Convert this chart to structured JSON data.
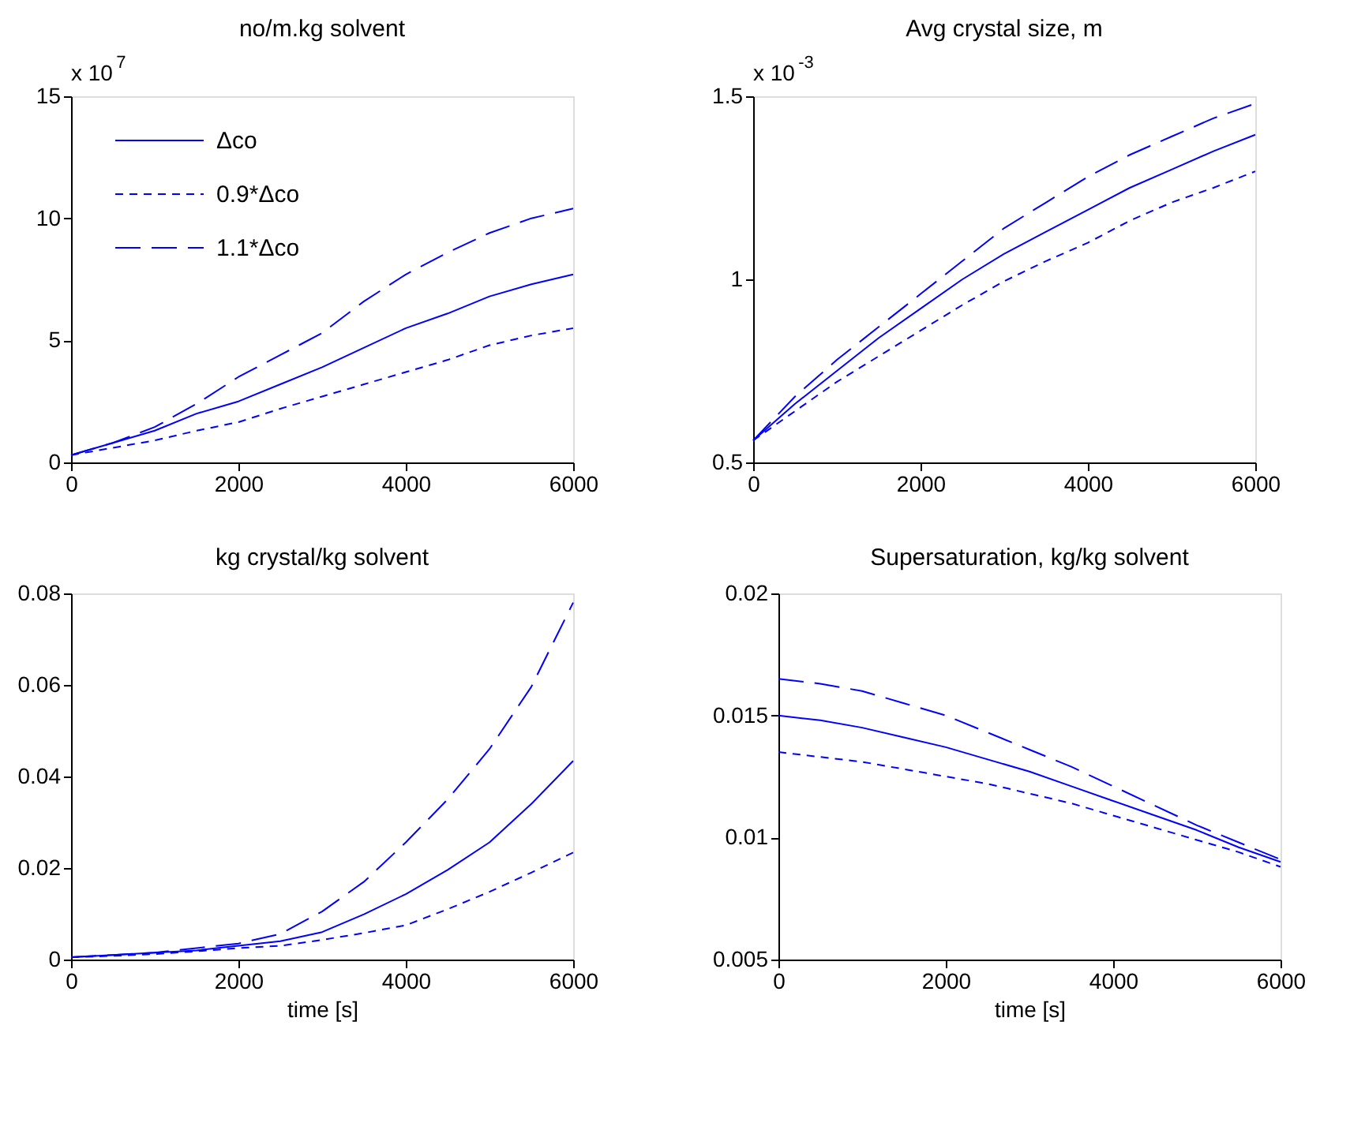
{
  "chart_data": [
    {
      "type": "line",
      "title": "no/m.kg solvent",
      "annotations": [
        "x 10$^{7}$"
      ],
      "legend": "top left",
      "xlim": [
        0,
        6000
      ],
      "xticks": [
        0,
        2000,
        4000,
        6000
      ],
      "ylim": [
        0,
        15
      ],
      "yticks": [
        0,
        5,
        10,
        15
      ],
      "x": [
        0,
        500,
        1000,
        1500,
        2000,
        2500,
        3000,
        3500,
        4000,
        4500,
        5000,
        5500,
        6000
      ],
      "series": [
        {
          "name": "Δco",
          "color": "#0000ff",
          "line_style": "solid",
          "values": [
            0.3,
            0.8,
            1.3,
            2.0,
            2.5,
            3.2,
            3.9,
            4.7,
            5.5,
            6.1,
            6.8,
            7.3,
            7.7
          ]
        },
        {
          "name": "0.9*Δco",
          "color": "#0000ff",
          "line_style": "dashed",
          "values": [
            0.3,
            0.6,
            0.9,
            1.3,
            1.65,
            2.2,
            2.7,
            3.2,
            3.7,
            4.2,
            4.8,
            5.2,
            5.5
          ]
        },
        {
          "name": "1.1*Δco",
          "color": "#0000ff",
          "line_style": "dashed",
          "values": [
            0.3,
            0.8,
            1.45,
            2.4,
            3.5,
            4.4,
            5.3,
            6.6,
            7.7,
            8.6,
            9.4,
            10.0,
            10.4
          ]
        }
      ]
    },
    {
      "type": "line",
      "title": "Avg crystal size, m",
      "annotations": [
        "x 10$^{-3}$"
      ],
      "xlim": [
        0,
        6000
      ],
      "xticks": [
        0,
        2000,
        4000,
        6000
      ],
      "ylim": [
        0.5,
        1.5
      ],
      "yticks": [
        0.5,
        1,
        1.5
      ],
      "x": [
        0,
        500,
        1000,
        1500,
        2000,
        2500,
        3000,
        3500,
        4000,
        4500,
        5000,
        5500,
        6000
      ],
      "series": [
        {
          "color": "#0000ff",
          "line_style": "solid",
          "values": [
            0.56,
            0.66,
            0.75,
            0.84,
            0.92,
            1.0,
            1.07,
            1.13,
            1.19,
            1.25,
            1.3,
            1.35,
            1.395
          ]
        },
        {
          "color": "#0000ff",
          "line_style": "dashed",
          "values": [
            0.56,
            0.64,
            0.72,
            0.79,
            0.86,
            0.93,
            0.995,
            1.05,
            1.1,
            1.16,
            1.21,
            1.25,
            1.295
          ]
        },
        {
          "color": "#0000ff",
          "line_style": "dashed",
          "values": [
            0.56,
            0.68,
            0.78,
            0.87,
            0.96,
            1.05,
            1.14,
            1.21,
            1.28,
            1.34,
            1.39,
            1.44,
            1.48
          ]
        }
      ]
    },
    {
      "type": "line",
      "title": "kg crystal/kg solvent",
      "xlabel": "time [s]",
      "xlim": [
        0,
        6000
      ],
      "xticks": [
        0,
        2000,
        4000,
        6000
      ],
      "ylim": [
        0,
        0.08
      ],
      "yticks": [
        0,
        0.02,
        0.04,
        0.06,
        0.08
      ],
      "x": [
        0,
        500,
        1000,
        1500,
        2000,
        2500,
        3000,
        3500,
        4000,
        4500,
        5000,
        5500,
        6000
      ],
      "series": [
        {
          "color": "#0000ff",
          "line_style": "solid",
          "values": [
            0.0005,
            0.001,
            0.0015,
            0.002,
            0.003,
            0.004,
            0.006,
            0.0099,
            0.0143,
            0.0196,
            0.0256,
            0.034,
            0.0434
          ]
        },
        {
          "color": "#0000ff",
          "line_style": "dashed",
          "values": [
            0.0005,
            0.0008,
            0.0012,
            0.0018,
            0.0025,
            0.003,
            0.0043,
            0.0058,
            0.0075,
            0.011,
            0.0148,
            0.019,
            0.0234
          ]
        },
        {
          "color": "#0000ff",
          "line_style": "dashed",
          "values": [
            0.0005,
            0.001,
            0.0015,
            0.0025,
            0.0035,
            0.0056,
            0.0105,
            0.017,
            0.0256,
            0.035,
            0.046,
            0.0596,
            0.078
          ]
        }
      ]
    },
    {
      "type": "line",
      "title": "Supersaturation, kg/kg solvent",
      "xlabel": "time [s]",
      "xlim": [
        0,
        6000
      ],
      "xticks": [
        0,
        2000,
        4000,
        6000
      ],
      "ylim": [
        0.005,
        0.02
      ],
      "yticks": [
        0.005,
        0.01,
        0.015,
        0.02
      ],
      "x": [
        0,
        500,
        1000,
        1500,
        2000,
        2500,
        3000,
        3500,
        4000,
        4500,
        5000,
        5500,
        6000
      ],
      "series": [
        {
          "color": "#0000ff",
          "line_style": "solid",
          "values": [
            0.015,
            0.0148,
            0.0145,
            0.0141,
            0.0137,
            0.0132,
            0.0127,
            0.0121,
            0.0115,
            0.0109,
            0.0103,
            0.0096,
            0.009
          ]
        },
        {
          "color": "#0000ff",
          "line_style": "dashed",
          "values": [
            0.0135,
            0.0133,
            0.0131,
            0.0128,
            0.0125,
            0.0122,
            0.0118,
            0.0114,
            0.0109,
            0.0104,
            0.0099,
            0.0094,
            0.0088
          ]
        },
        {
          "color": "#0000ff",
          "line_style": "dashed",
          "values": [
            0.0165,
            0.0163,
            0.016,
            0.0155,
            0.015,
            0.0143,
            0.0136,
            0.0129,
            0.0121,
            0.0113,
            0.0105,
            0.0098,
            0.0091
          ]
        }
      ]
    }
  ]
}
